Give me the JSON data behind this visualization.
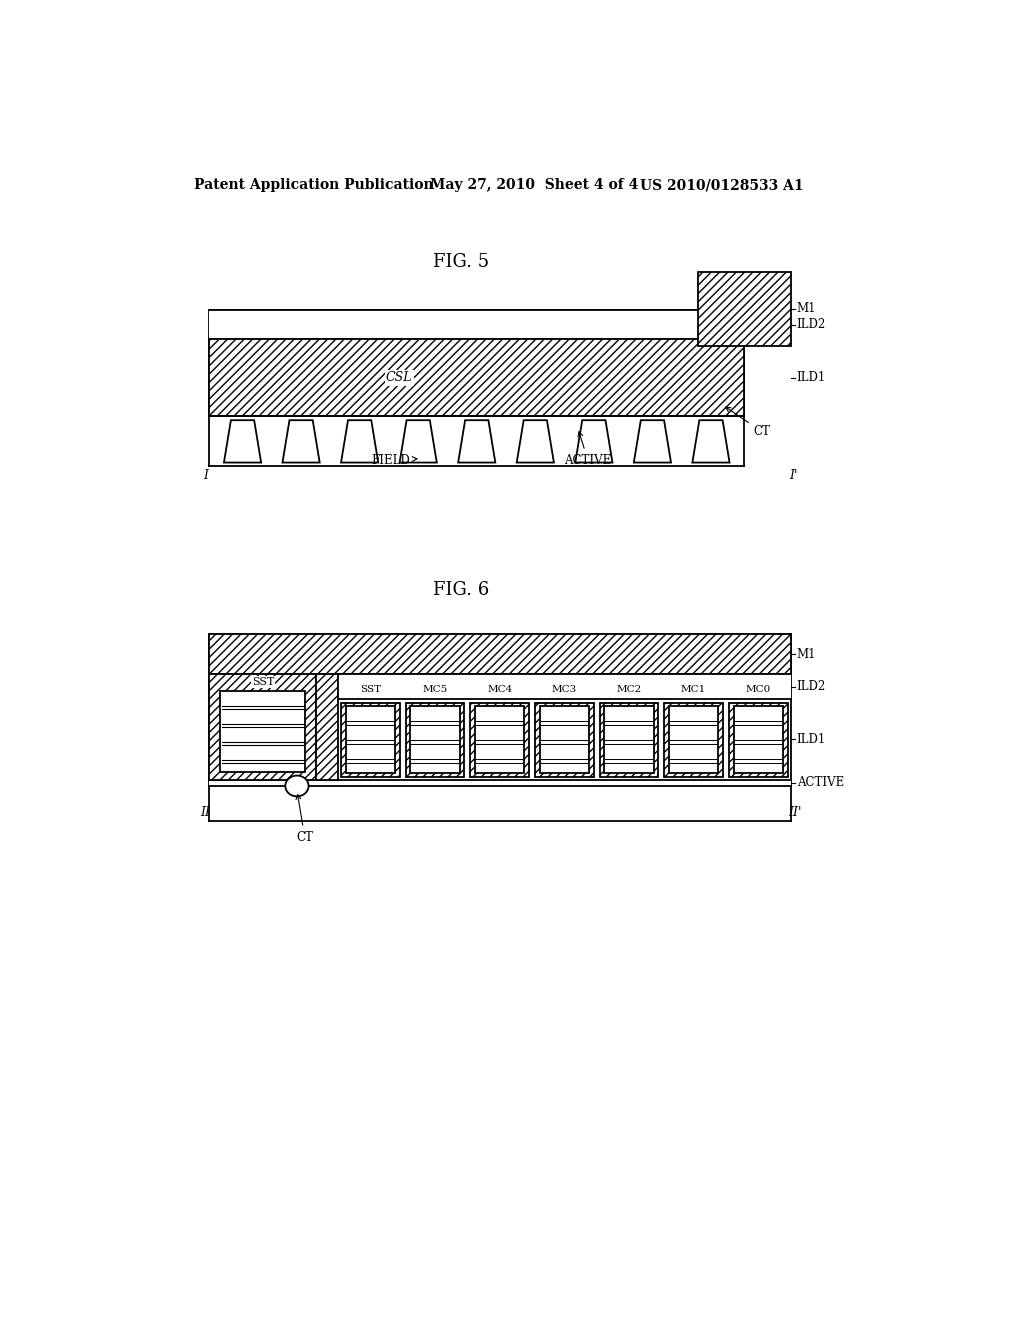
{
  "bg_color": "#ffffff",
  "header_text": "Patent Application Publication",
  "header_date": "May 27, 2010  Sheet 4 of 4",
  "header_patent": "US 2010/0128533 A1",
  "fig5_title": "FIG. 5",
  "fig6_title": "FIG. 6",
  "line_color": "#000000",
  "label_fontsize": 9,
  "title_fontsize": 13,
  "header_fontsize": 10
}
